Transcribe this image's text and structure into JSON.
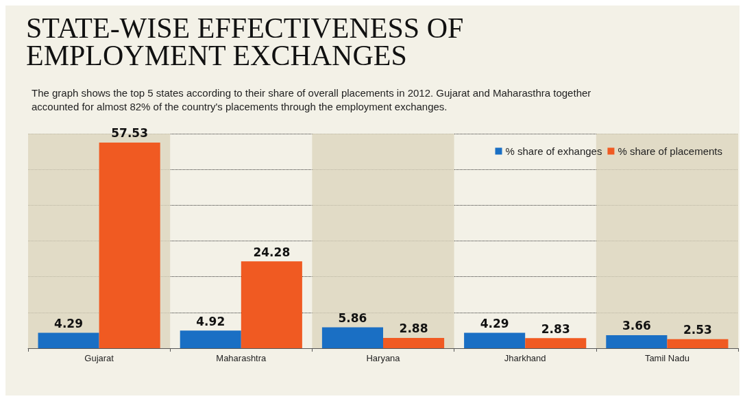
{
  "chart_data": {
    "type": "bar",
    "title": "STATE-WISE EFFECTIVENESS OF EMPLOYMENT EXCHANGES",
    "subtitle": "The graph shows the top 5 states according to their share of overall placements in 2012. Gujarat and Maharasthra together accounted for almost 82% of the country's placements through the employment exchanges.",
    "categories": [
      "Gujarat",
      "Maharashtra",
      "Haryana",
      "Jharkhand",
      "Tamil Nadu"
    ],
    "series": [
      {
        "name": "% share of exhanges",
        "color": "#1a6fc4",
        "values": [
          4.29,
          4.92,
          5.86,
          4.29,
          3.66
        ]
      },
      {
        "name": "% share of placements",
        "color": "#f05a22",
        "values": [
          57.53,
          24.28,
          2.88,
          2.83,
          2.53
        ]
      }
    ],
    "ylim": [
      0,
      60
    ],
    "yticks": [
      {
        "value": 0,
        "label": null
      },
      {
        "value": 10,
        "label": null
      },
      {
        "value": 20,
        "label": null
      },
      {
        "value": 30,
        "label": null
      },
      {
        "value": 40,
        "label": null
      },
      {
        "value": 50,
        "label": null
      },
      {
        "value": 60,
        "label": null
      }
    ],
    "grid": "y",
    "legend": "top right",
    "data_labels": true,
    "tick_labels": "x"
  }
}
